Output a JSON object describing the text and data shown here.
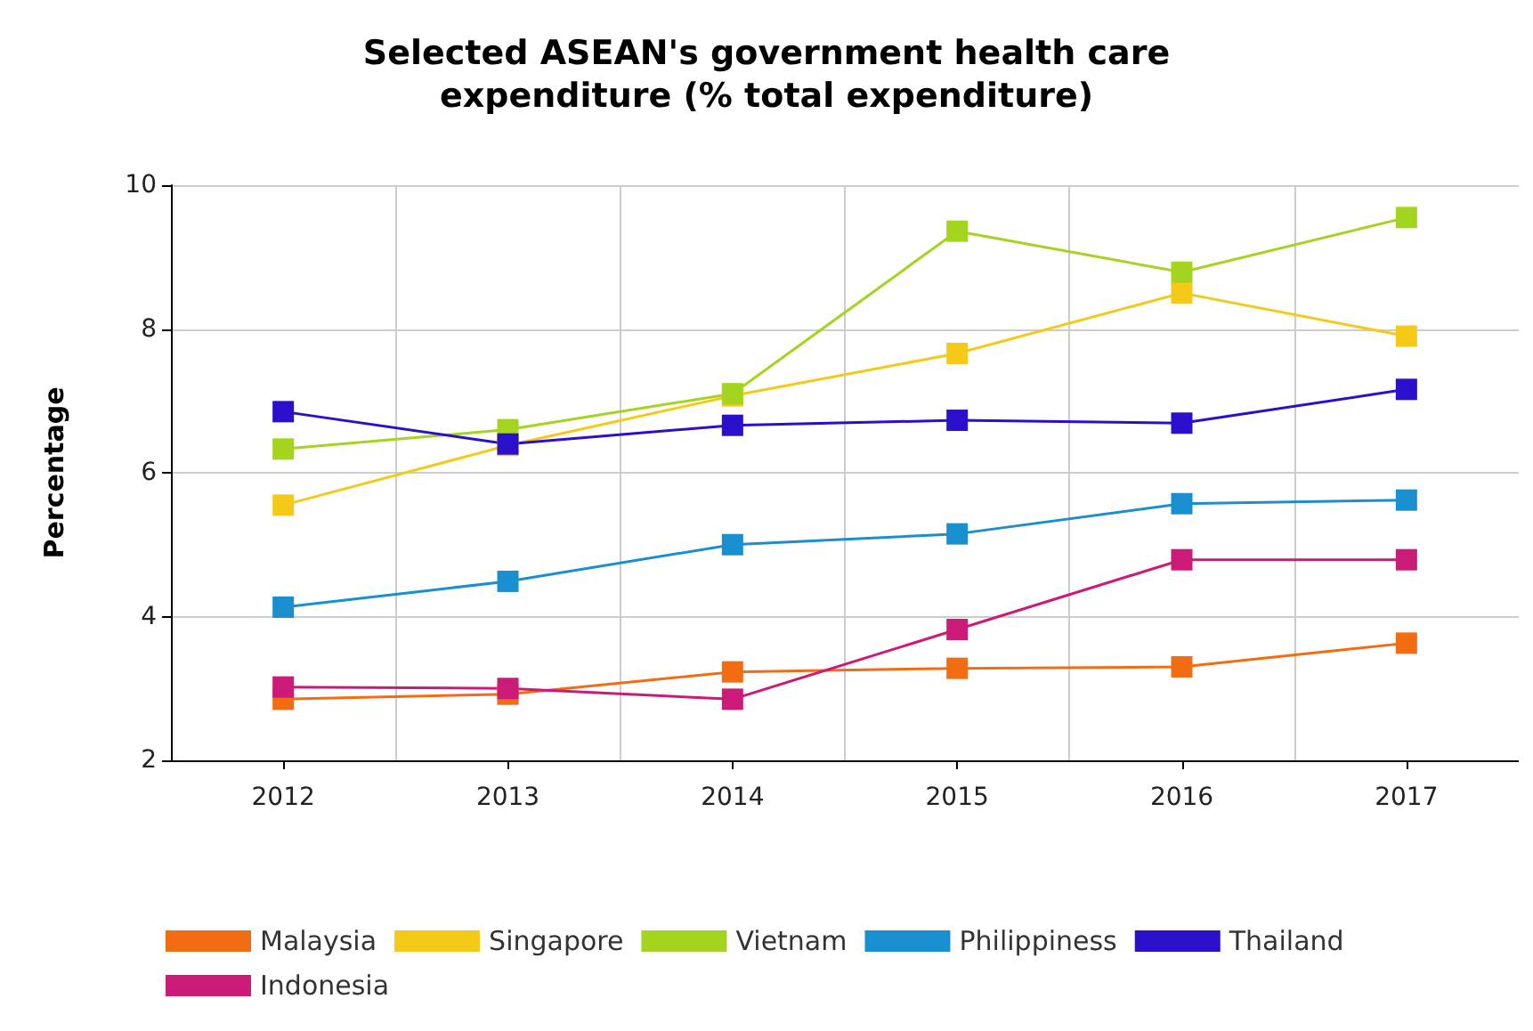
{
  "chart_data": {
    "type": "line",
    "title": "Selected ASEAN's government health care\nexpenditure (% total expenditure)",
    "ylabel": "Percentage",
    "categories": [
      "2012",
      "2013",
      "2014",
      "2015",
      "2016",
      "2017"
    ],
    "series": [
      {
        "name": "Malaysia",
        "color": "#f26d12",
        "values": [
          2.85,
          2.92,
          3.23,
          3.28,
          3.3,
          3.63
        ]
      },
      {
        "name": "Singapore",
        "color": "#f5c918",
        "values": [
          5.55,
          6.38,
          7.07,
          7.66,
          8.5,
          7.9
        ]
      },
      {
        "name": "Vietnam",
        "color": "#a3d41e",
        "values": [
          6.33,
          6.6,
          7.1,
          9.36,
          8.79,
          9.55
        ]
      },
      {
        "name": "Philippiness",
        "color": "#1a8fcf",
        "values": [
          4.13,
          4.49,
          5.0,
          5.15,
          5.57,
          5.62
        ]
      },
      {
        "name": "Thailand",
        "color": "#2a0fcc",
        "values": [
          6.85,
          6.4,
          6.66,
          6.73,
          6.69,
          7.16
        ]
      },
      {
        "name": "Indonesia",
        "color": "#cc1a78",
        "values": [
          3.02,
          3.0,
          2.85,
          3.82,
          4.79,
          4.79
        ]
      }
    ],
    "ylim": [
      2,
      10
    ],
    "yticks": [
      2,
      4,
      6,
      8,
      10
    ],
    "grid": true,
    "legend": "bottom",
    "marker": "square",
    "line_style": "solid"
  }
}
